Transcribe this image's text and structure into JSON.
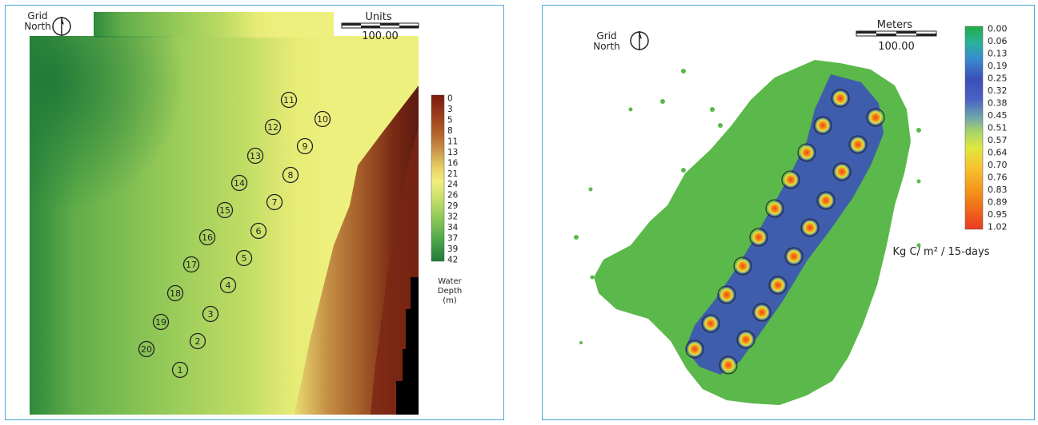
{
  "left_map": {
    "north": {
      "line1": "Grid",
      "line2": "North"
    },
    "scale": {
      "title": "Units",
      "value": "100.00"
    },
    "colorbar": {
      "ticks": [
        "0",
        "3",
        "5",
        "8",
        "11",
        "13",
        "16",
        "21",
        "24",
        "26",
        "29",
        "32",
        "34",
        "37",
        "39",
        "42"
      ],
      "title_lines": [
        "Water",
        "Depth",
        "(m)"
      ],
      "colors": [
        "#7a1a10",
        "#9a3c1a",
        "#b6662c",
        "#cc9a4e",
        "#e8d066",
        "#f2ee7c",
        "#c8e06a",
        "#8ec85a",
        "#4fa84a",
        "#1f7a3a"
      ]
    },
    "labels": [
      "1",
      "2",
      "3",
      "4",
      "5",
      "6",
      "7",
      "8",
      "9",
      "10",
      "11",
      "12",
      "13",
      "14",
      "15",
      "16",
      "17",
      "18",
      "19",
      "20"
    ],
    "colors": {
      "deep": "#2f8a3e",
      "mid": "#8ec75a",
      "shallow": "#eef07e",
      "land_light": "#c07c3c",
      "land_dark": "#5a1a10",
      "no_data": "#000000"
    }
  },
  "right_map": {
    "north": {
      "line1": "Grid",
      "line2": "North"
    },
    "scale": {
      "title": "Meters",
      "value": "100.00"
    },
    "colorbar": {
      "ticks": [
        "0.00",
        "0.06",
        "0.13",
        "0.19",
        "0.25",
        "0.32",
        "0.38",
        "0.45",
        "0.51",
        "0.57",
        "0.64",
        "0.70",
        "0.76",
        "0.83",
        "0.89",
        "0.95",
        "1.02"
      ],
      "colors": [
        "#22aa44",
        "#2ab39a",
        "#3d6fd0",
        "#3a50b8",
        "#5a88c0",
        "#9ad07a",
        "#e8ea40",
        "#f6c030",
        "#f39018",
        "#ec3a22"
      ]
    },
    "units_label": "Kg C/ m² / 15-days",
    "colors": {
      "footprint": "#5bb84a",
      "core": "#3d55b5",
      "hot": "#f0421e",
      "warm": "#f6d230"
    }
  }
}
